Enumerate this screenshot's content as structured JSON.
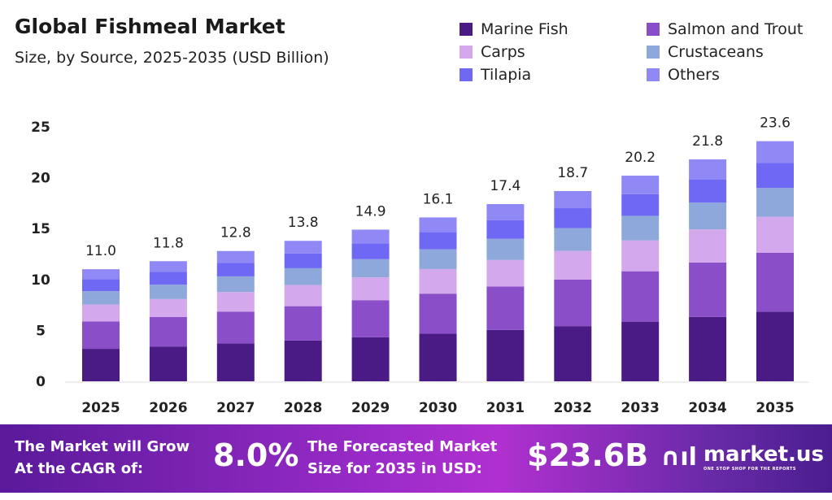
{
  "chart_data": {
    "type": "bar",
    "stacked": true,
    "title": "Global Fishmeal Market",
    "subtitle": "Size, by Source, 2025-2035 (USD Billion)",
    "categories": [
      "2025",
      "2026",
      "2027",
      "2028",
      "2029",
      "2030",
      "2031",
      "2032",
      "2033",
      "2034",
      "2035"
    ],
    "totals": [
      "11.0",
      "11.8",
      "12.8",
      "13.8",
      "14.9",
      "16.1",
      "17.4",
      "18.7",
      "20.2",
      "21.8",
      "23.6"
    ],
    "ylim": [
      0,
      25
    ],
    "yticks": [
      "0",
      "5",
      "10",
      "15",
      "20",
      "25"
    ],
    "grid": false,
    "legend_position": "top-right",
    "series": [
      {
        "name": "Marine Fish",
        "color": "#4a1a85",
        "values": [
          3.19,
          3.42,
          3.71,
          4.0,
          4.32,
          4.67,
          5.05,
          5.42,
          5.86,
          6.32,
          6.84
        ]
      },
      {
        "name": "Salmon and Trout",
        "color": "#8a4fc8",
        "values": [
          2.7,
          2.89,
          3.14,
          3.38,
          3.65,
          3.94,
          4.26,
          4.58,
          4.95,
          5.34,
          5.78
        ]
      },
      {
        "name": "Carps",
        "color": "#d4a8ec",
        "values": [
          1.65,
          1.77,
          1.92,
          2.07,
          2.24,
          2.42,
          2.61,
          2.81,
          3.03,
          3.27,
          3.54
        ]
      },
      {
        "name": "Crustaceans",
        "color": "#8fa8dc",
        "values": [
          1.32,
          1.42,
          1.54,
          1.66,
          1.79,
          1.93,
          2.09,
          2.24,
          2.42,
          2.62,
          2.83
        ]
      },
      {
        "name": "Tilapia",
        "color": "#6f68f5",
        "values": [
          1.16,
          1.24,
          1.34,
          1.45,
          1.56,
          1.69,
          1.83,
          1.96,
          2.12,
          2.29,
          2.48
        ]
      },
      {
        "name": "Others",
        "color": "#8f88f5",
        "values": [
          0.99,
          1.06,
          1.15,
          1.24,
          1.34,
          1.45,
          1.57,
          1.68,
          1.82,
          1.96,
          2.12
        ]
      }
    ]
  },
  "footer": {
    "cagr_text_1": "The Market will Grow",
    "cagr_text_2": "At the CAGR of:",
    "cagr_value": "8.0%",
    "forecast_text_1": "The Forecasted Market",
    "forecast_text_2": "Size for 2035 in USD:",
    "forecast_value": "$23.6B",
    "logo": "market.us",
    "logo_tagline": "ONE STOP SHOP FOR THE REPORTS"
  }
}
